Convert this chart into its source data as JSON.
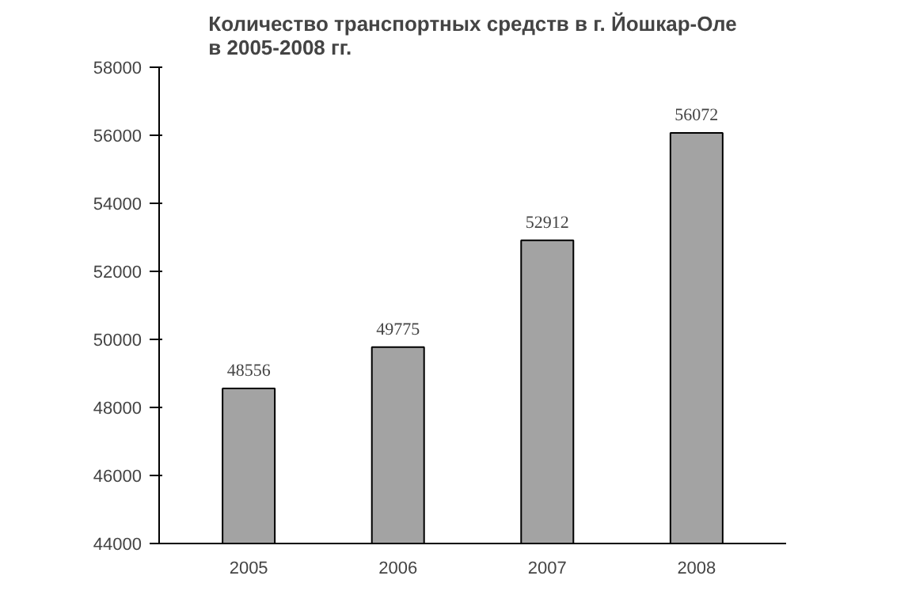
{
  "chart_data": {
    "type": "bar",
    "title": "Количество транспортных средств в г. Йошкар-Оле\nв 2005-2008 гг.",
    "categories": [
      "2005",
      "2006",
      "2007",
      "2008"
    ],
    "values": [
      48556,
      49775,
      52912,
      56072
    ],
    "color": "#a3a3a3",
    "data_labels": true,
    "grid": false,
    "ylim": [
      44000,
      58000
    ],
    "yticks": [
      44000,
      46000,
      48000,
      50000,
      52000,
      54000,
      56000,
      58000
    ]
  }
}
